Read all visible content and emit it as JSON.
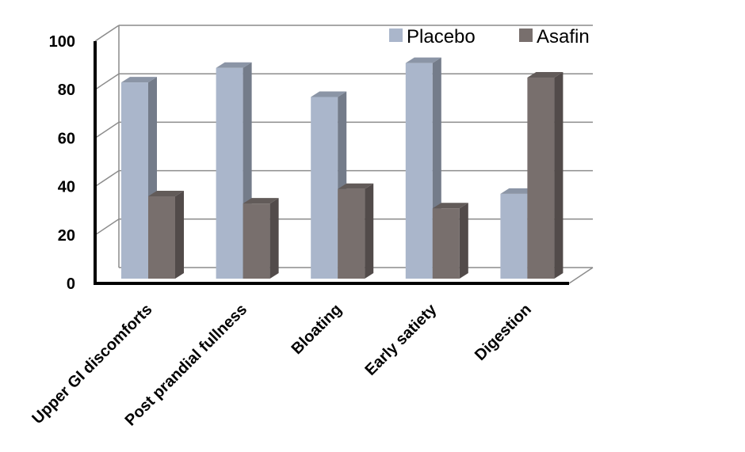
{
  "chart_data": {
    "type": "bar",
    "categories": [
      "Upper GI discomforts",
      "Post prandial fullness",
      "Bloating",
      "Early satiety",
      "Digestion"
    ],
    "series": [
      {
        "name": "Placebo",
        "values": [
          81,
          87,
          75,
          89,
          35
        ],
        "color": "#aab6cb"
      },
      {
        "name": "Asafin",
        "values": [
          34,
          31,
          37,
          29,
          83
        ],
        "color": "#786f6d"
      }
    ],
    "yticks": [
      0,
      20,
      40,
      60,
      80,
      100
    ],
    "ylim": [
      0,
      100
    ],
    "grid": true,
    "legend": "top-right",
    "title": "",
    "xlabel": "",
    "ylabel": ""
  }
}
